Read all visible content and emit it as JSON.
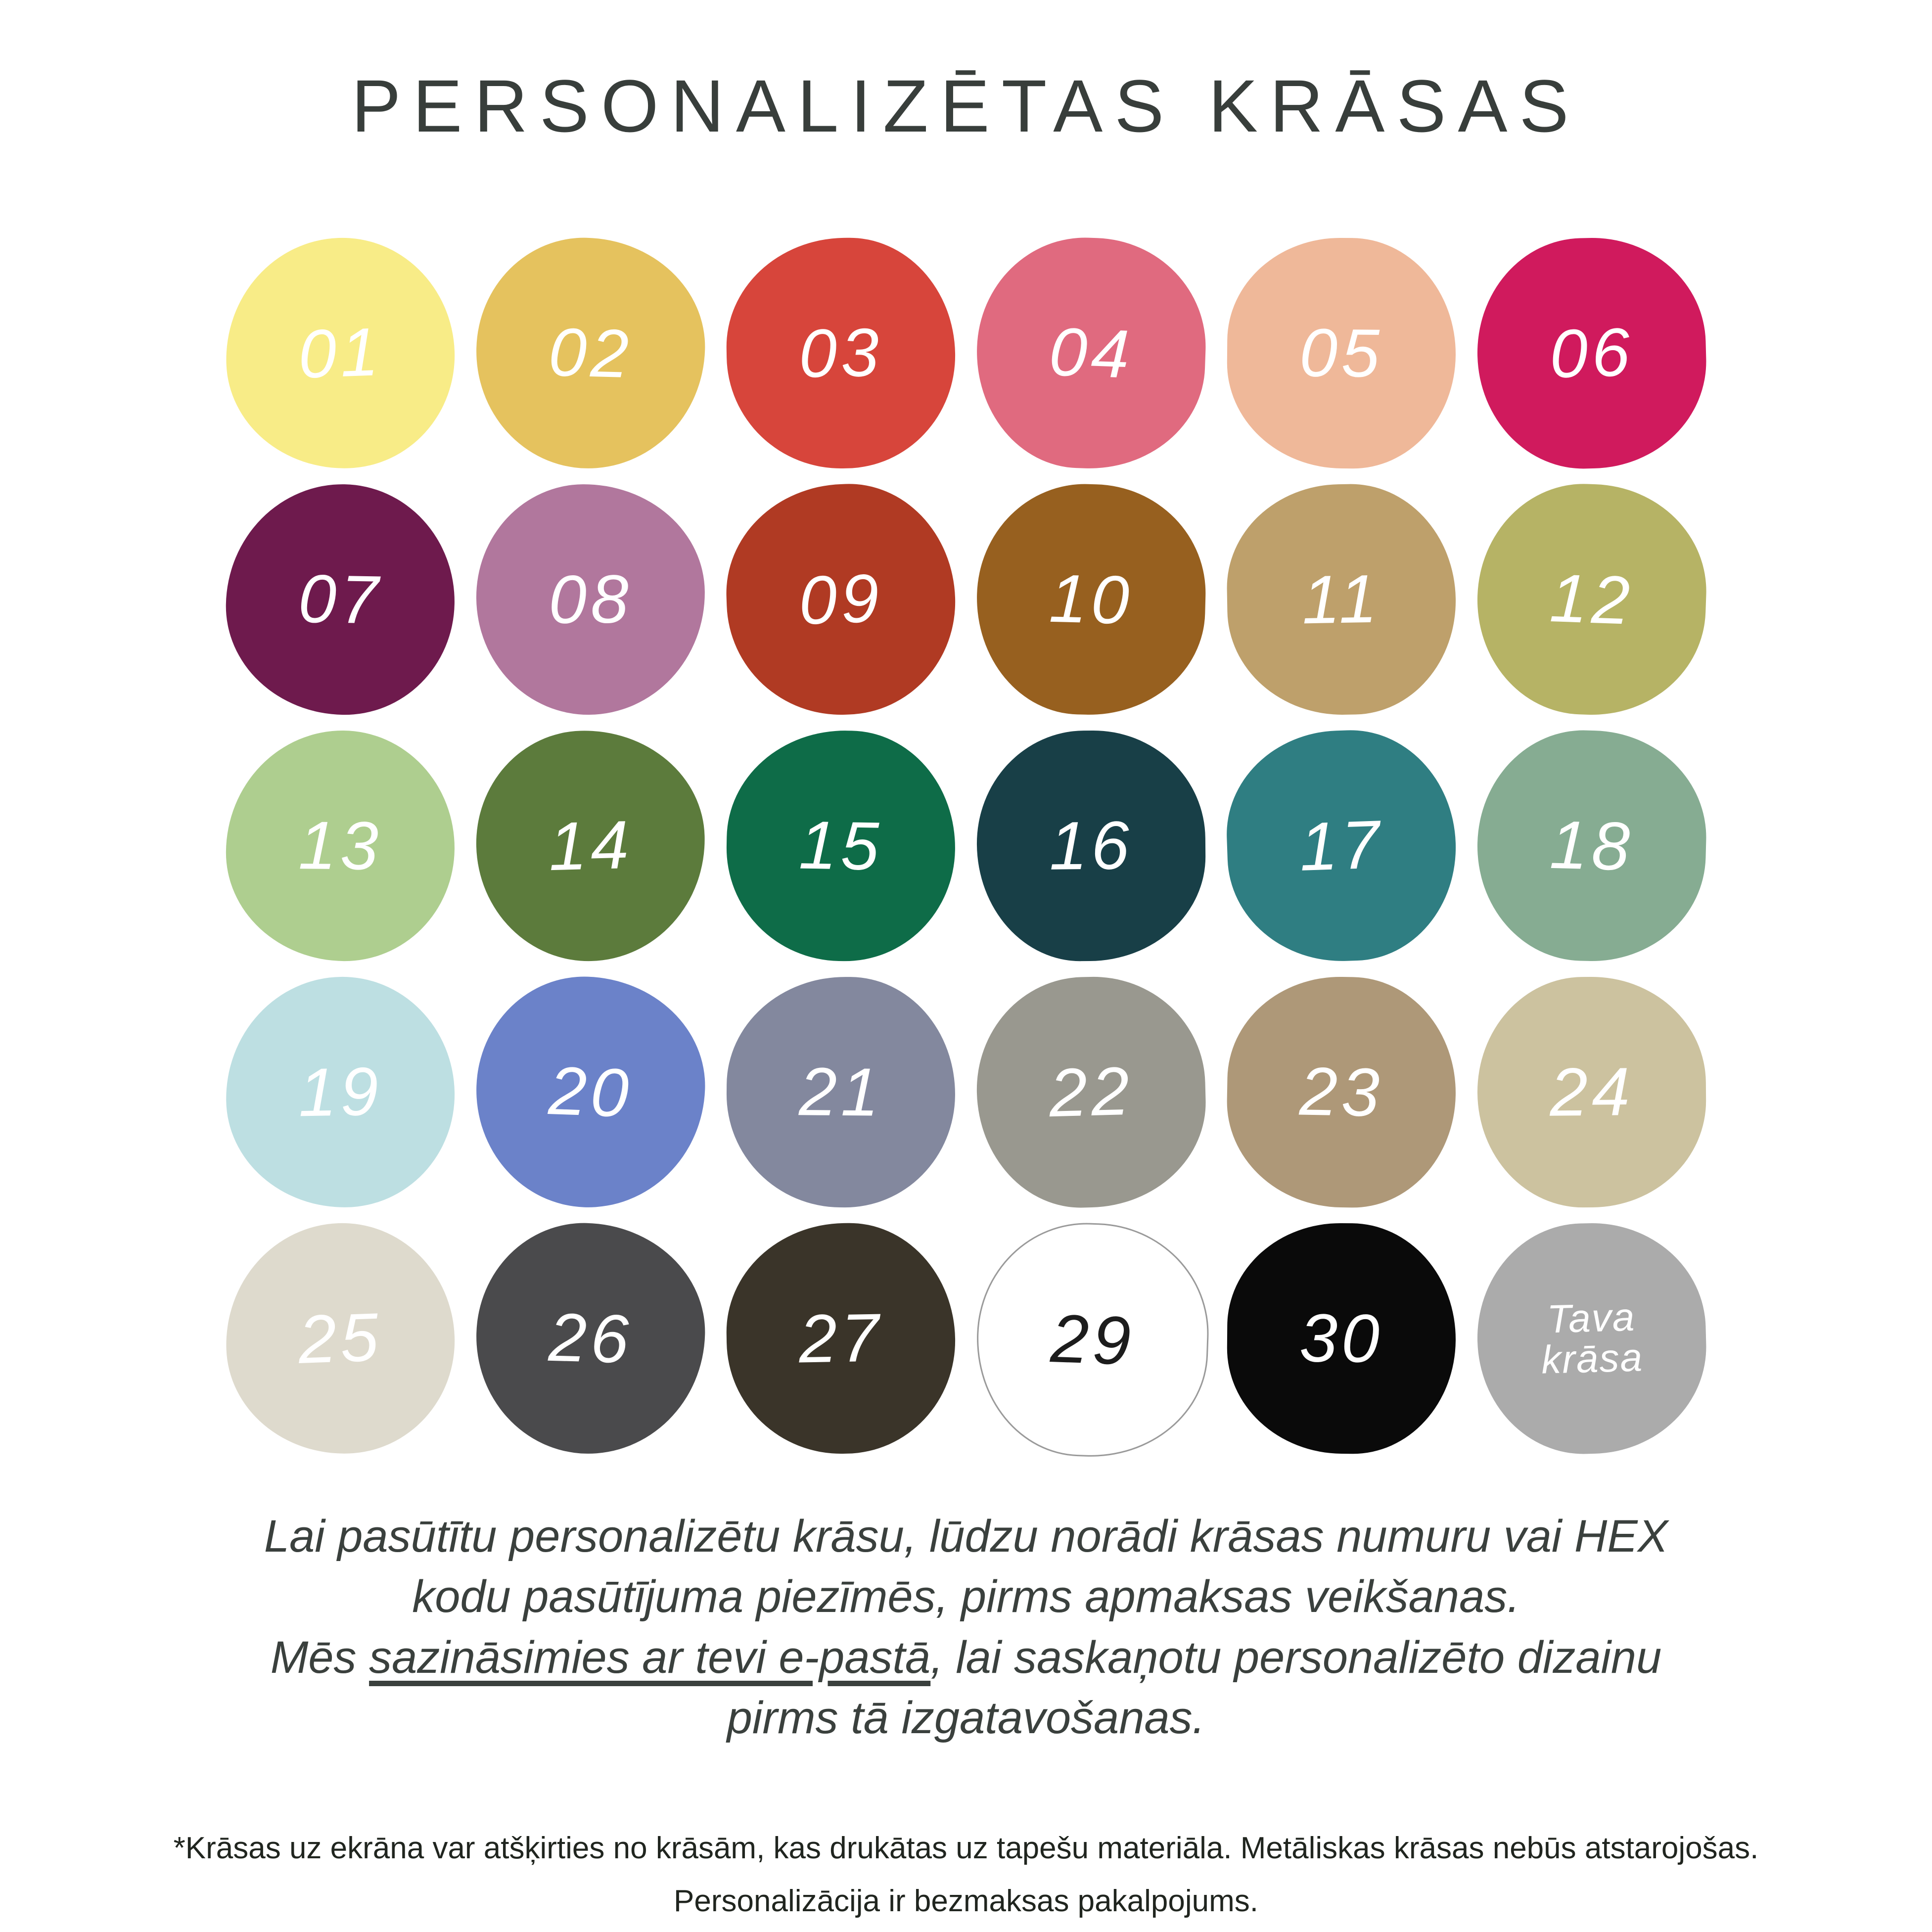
{
  "title": "PERSONALIZĒTAS KRĀSAS",
  "palette": {
    "swatches": [
      {
        "id": "01",
        "label": "01",
        "color": "#F8EC87",
        "text_color": "#FFFFFF"
      },
      {
        "id": "02",
        "label": "02",
        "color": "#E5C25E",
        "text_color": "#FFFFFF"
      },
      {
        "id": "03",
        "label": "03",
        "color": "#D7453B",
        "text_color": "#FFFFFF"
      },
      {
        "id": "04",
        "label": "04",
        "color": "#E06A7F",
        "text_color": "#FFFFFF"
      },
      {
        "id": "05",
        "label": "05",
        "color": "#EFB899",
        "text_color": "#FFFFFF"
      },
      {
        "id": "06",
        "label": "06",
        "color": "#D01A5D",
        "text_color": "#FFFFFF"
      },
      {
        "id": "07",
        "label": "07",
        "color": "#6E1A4D",
        "text_color": "#FFFFFF"
      },
      {
        "id": "08",
        "label": "08",
        "color": "#B1779D",
        "text_color": "#FFFFFF"
      },
      {
        "id": "09",
        "label": "09",
        "color": "#B03A23",
        "text_color": "#FFFFFF"
      },
      {
        "id": "10",
        "label": "10",
        "color": "#97601F",
        "text_color": "#FFFFFF"
      },
      {
        "id": "11",
        "label": "11",
        "color": "#BEA06B",
        "text_color": "#FFFFFF"
      },
      {
        "id": "12",
        "label": "12",
        "color": "#B6B365",
        "text_color": "#FFFFFF"
      },
      {
        "id": "13",
        "label": "13",
        "color": "#AECE8F",
        "text_color": "#FFFFFF"
      },
      {
        "id": "14",
        "label": "14",
        "color": "#5C7B3C",
        "text_color": "#FFFFFF"
      },
      {
        "id": "15",
        "label": "15",
        "color": "#0E6C48",
        "text_color": "#FFFFFF"
      },
      {
        "id": "16",
        "label": "16",
        "color": "#183F47",
        "text_color": "#FFFFFF"
      },
      {
        "id": "17",
        "label": "17",
        "color": "#2F7E82",
        "text_color": "#FFFFFF"
      },
      {
        "id": "18",
        "label": "18",
        "color": "#86AC92",
        "text_color": "#FFFFFF"
      },
      {
        "id": "19",
        "label": "19",
        "color": "#BDDFE2",
        "text_color": "#FFFFFF"
      },
      {
        "id": "20",
        "label": "20",
        "color": "#6B82C9",
        "text_color": "#FFFFFF"
      },
      {
        "id": "21",
        "label": "21",
        "color": "#83889E",
        "text_color": "#FFFFFF"
      },
      {
        "id": "22",
        "label": "22",
        "color": "#99988F",
        "text_color": "#FFFFFF"
      },
      {
        "id": "23",
        "label": "23",
        "color": "#AE9878",
        "text_color": "#FFFFFF"
      },
      {
        "id": "24",
        "label": "24",
        "color": "#CCC29F",
        "text_color": "#FFFFFF"
      },
      {
        "id": "25",
        "label": "25",
        "color": "#DEDACD",
        "text_color": "#FFFFFF"
      },
      {
        "id": "26",
        "label": "26",
        "color": "#4A4A4C",
        "text_color": "#FFFFFF"
      },
      {
        "id": "27",
        "label": "27",
        "color": "#3A3429",
        "text_color": "#FFFFFF"
      },
      {
        "id": "29",
        "label": "29",
        "color": "#FFFFFF",
        "text_color": "#1C1C1C",
        "outlined": true
      },
      {
        "id": "30",
        "label": "30",
        "color": "#0A0A0A",
        "text_color": "#FFFFFF"
      },
      {
        "id": "custom",
        "label": "Tava krāsa",
        "color": "#ABABAB",
        "text_color": "#FFFFFF",
        "multiline": true
      }
    ]
  },
  "note": {
    "line1": "Lai pasūtītu personalizētu krāsu, lūdzu norādi krāsas numuru vai HEX",
    "line2": "kodu pasūtījuma piezīmēs, pirms apmaksas veikšanas.",
    "line3_prefix": "Mēs ",
    "line3_underlined": "sazināsimies ar tevi e-pastā",
    "line3_suffix": ", lai saskaņotu personalizēto dizainu",
    "line4": "pirms tā izgatavošanas."
  },
  "fine_print": {
    "line1": "*Krāsas uz ekrāna var atšķirties no krāsām, kas drukātas uz tapešu materiāla. Metāliskas krāsas nebūs atstarojošas.",
    "line2": "Personalizācija ir bezmaksas pakalpojums."
  }
}
